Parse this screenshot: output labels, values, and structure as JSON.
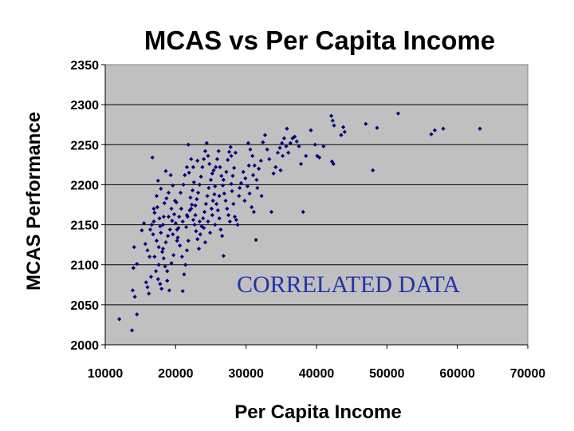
{
  "chart_data": {
    "type": "scatter",
    "title": "MCAS vs Per Capita Income",
    "xlabel": "Per Capita Income",
    "ylabel": "MCAS Performance",
    "xlim": [
      10000,
      70000
    ],
    "ylim": [
      2000,
      2350
    ],
    "xticks": [
      10000,
      20000,
      30000,
      40000,
      50000,
      60000,
      70000
    ],
    "yticks": [
      2000,
      2050,
      2100,
      2150,
      2200,
      2250,
      2300,
      2350
    ],
    "grid": true,
    "plot_background": "#c0c0c0",
    "marker_color": "#000080",
    "annotation": {
      "text": "CORRELATED DATA",
      "color": "#2233aa"
    },
    "points": [
      [
        12000,
        2032
      ],
      [
        13800,
        2018
      ],
      [
        14500,
        2038
      ],
      [
        14200,
        2060
      ],
      [
        13900,
        2068
      ],
      [
        14000,
        2096
      ],
      [
        14500,
        2101
      ],
      [
        14100,
        2122
      ],
      [
        15200,
        2143
      ],
      [
        15500,
        2152
      ],
      [
        15800,
        2078
      ],
      [
        16000,
        2072
      ],
      [
        16200,
        2064
      ],
      [
        16500,
        2085
      ],
      [
        16300,
        2110
      ],
      [
        16000,
        2118
      ],
      [
        15700,
        2126
      ],
      [
        16800,
        2138
      ],
      [
        16600,
        2150
      ],
      [
        16900,
        2154
      ],
      [
        16700,
        2234
      ],
      [
        17000,
        2165
      ],
      [
        17200,
        2092
      ],
      [
        17500,
        2082
      ],
      [
        17800,
        2076
      ],
      [
        18000,
        2070
      ],
      [
        17300,
        2130
      ],
      [
        17600,
        2122
      ],
      [
        17900,
        2140
      ],
      [
        18200,
        2150
      ],
      [
        17400,
        2172
      ],
      [
        17700,
        2158
      ],
      [
        18100,
        2116
      ],
      [
        18300,
        2108
      ],
      [
        18500,
        2098
      ],
      [
        18800,
        2080
      ],
      [
        19100,
        2068
      ],
      [
        19400,
        2102
      ],
      [
        19700,
        2112
      ],
      [
        18600,
        2128
      ],
      [
        18900,
        2136
      ],
      [
        19200,
        2144
      ],
      [
        19500,
        2155
      ],
      [
        19800,
        2163
      ],
      [
        18400,
        2177
      ],
      [
        18700,
        2183
      ],
      [
        19000,
        2190
      ],
      [
        18600,
        2217
      ],
      [
        19300,
        2212
      ],
      [
        19600,
        2199
      ],
      [
        19900,
        2180
      ],
      [
        17500,
        2205
      ],
      [
        17900,
        2195
      ],
      [
        20000,
        2152
      ],
      [
        20200,
        2144
      ],
      [
        20500,
        2160
      ],
      [
        20800,
        2170
      ],
      [
        20300,
        2134
      ],
      [
        20600,
        2124
      ],
      [
        20900,
        2110
      ],
      [
        21200,
        2088
      ],
      [
        21000,
        2067
      ],
      [
        21400,
        2100
      ],
      [
        21600,
        2118
      ],
      [
        21800,
        2130
      ],
      [
        21500,
        2147
      ],
      [
        21700,
        2160
      ],
      [
        22000,
        2168
      ],
      [
        22300,
        2175
      ],
      [
        22100,
        2184
      ],
      [
        22400,
        2193
      ],
      [
        22600,
        2203
      ],
      [
        21300,
        2212
      ],
      [
        21600,
        2222
      ],
      [
        21800,
        2250
      ],
      [
        22200,
        2232
      ],
      [
        22500,
        2156
      ],
      [
        22700,
        2150
      ],
      [
        22900,
        2142
      ],
      [
        23100,
        2132
      ],
      [
        23300,
        2120
      ],
      [
        23500,
        2138
      ],
      [
        23700,
        2148
      ],
      [
        23900,
        2158
      ],
      [
        24100,
        2166
      ],
      [
        24300,
        2176
      ],
      [
        24500,
        2186
      ],
      [
        24700,
        2196
      ],
      [
        22800,
        2174
      ],
      [
        23000,
        2182
      ],
      [
        23200,
        2190
      ],
      [
        23400,
        2200
      ],
      [
        23600,
        2210
      ],
      [
        23800,
        2222
      ],
      [
        24000,
        2232
      ],
      [
        24200,
        2242
      ],
      [
        24400,
        2252
      ],
      [
        24600,
        2236
      ],
      [
        24800,
        2226
      ],
      [
        25000,
        2206
      ],
      [
        25200,
        2214
      ],
      [
        25400,
        2218
      ],
      [
        25600,
        2198
      ],
      [
        25800,
        2176
      ],
      [
        26000,
        2168
      ],
      [
        26200,
        2158
      ],
      [
        26400,
        2144
      ],
      [
        26600,
        2136
      ],
      [
        26800,
        2111
      ],
      [
        25100,
        2170
      ],
      [
        25300,
        2180
      ],
      [
        25500,
        2188
      ],
      [
        25700,
        2222
      ],
      [
        25900,
        2232
      ],
      [
        26100,
        2242
      ],
      [
        26300,
        2222
      ],
      [
        26500,
        2211
      ],
      [
        26700,
        2199
      ],
      [
        26900,
        2189
      ],
      [
        27100,
        2180
      ],
      [
        27300,
        2170
      ],
      [
        27500,
        2162
      ],
      [
        27700,
        2154
      ],
      [
        27900,
        2201
      ],
      [
        28100,
        2211
      ],
      [
        28300,
        2221
      ],
      [
        27400,
        2231
      ],
      [
        27600,
        2241
      ],
      [
        27800,
        2247
      ],
      [
        28000,
        2192
      ],
      [
        28200,
        2176
      ],
      [
        28400,
        2160
      ],
      [
        28600,
        2156
      ],
      [
        28800,
        2150
      ],
      [
        29000,
        2186
      ],
      [
        29300,
        2202
      ],
      [
        29600,
        2216
      ],
      [
        29900,
        2208
      ],
      [
        30200,
        2198
      ],
      [
        30500,
        2189
      ],
      [
        30800,
        2172
      ],
      [
        31100,
        2166
      ],
      [
        31400,
        2131
      ],
      [
        30300,
        2252
      ],
      [
        30600,
        2244
      ],
      [
        30900,
        2236
      ],
      [
        31200,
        2224
      ],
      [
        31500,
        2206
      ],
      [
        31800,
        2220
      ],
      [
        32100,
        2230
      ],
      [
        32400,
        2253
      ],
      [
        32700,
        2262
      ],
      [
        33000,
        2244
      ],
      [
        33300,
        2232
      ],
      [
        33600,
        2166
      ],
      [
        33900,
        2214
      ],
      [
        34200,
        2222
      ],
      [
        34500,
        2240
      ],
      [
        34800,
        2246
      ],
      [
        35100,
        2252
      ],
      [
        35400,
        2258
      ],
      [
        35700,
        2248
      ],
      [
        36000,
        2240
      ],
      [
        36300,
        2252
      ],
      [
        36600,
        2258
      ],
      [
        36900,
        2260
      ],
      [
        37200,
        2254
      ],
      [
        37500,
        2248
      ],
      [
        37800,
        2226
      ],
      [
        38100,
        2166
      ],
      [
        35800,
        2270
      ],
      [
        35200,
        2236
      ],
      [
        34900,
        2218
      ],
      [
        38500,
        2236
      ],
      [
        39200,
        2268
      ],
      [
        39800,
        2250
      ],
      [
        40100,
        2236
      ],
      [
        40400,
        2234
      ],
      [
        41000,
        2248
      ],
      [
        42100,
        2286
      ],
      [
        42300,
        2280
      ],
      [
        42500,
        2274
      ],
      [
        42200,
        2229
      ],
      [
        42400,
        2226
      ],
      [
        43500,
        2262
      ],
      [
        43800,
        2272
      ],
      [
        44000,
        2266
      ],
      [
        47000,
        2276
      ],
      [
        48000,
        2218
      ],
      [
        48600,
        2271
      ],
      [
        51600,
        2289
      ],
      [
        56300,
        2263
      ],
      [
        56800,
        2268
      ],
      [
        58000,
        2270
      ],
      [
        63200,
        2270
      ],
      [
        19000,
        2160
      ],
      [
        19400,
        2170
      ],
      [
        20100,
        2178
      ],
      [
        20700,
        2190
      ],
      [
        21100,
        2200
      ],
      [
        21900,
        2215
      ],
      [
        22500,
        2222
      ],
      [
        23100,
        2230
      ],
      [
        20400,
        2146
      ],
      [
        21000,
        2154
      ],
      [
        21600,
        2162
      ],
      [
        22200,
        2170
      ],
      [
        22800,
        2162
      ],
      [
        23400,
        2154
      ],
      [
        24000,
        2146
      ],
      [
        24600,
        2154
      ],
      [
        25200,
        2162
      ],
      [
        19600,
        2138
      ],
      [
        20200,
        2130
      ],
      [
        18200,
        2120
      ],
      [
        17000,
        2110
      ],
      [
        17600,
        2100
      ],
      [
        18800,
        2092
      ],
      [
        16400,
        2144
      ],
      [
        16900,
        2170
      ],
      [
        17300,
        2186
      ],
      [
        17800,
        2148
      ],
      [
        18300,
        2160
      ],
      [
        24200,
        2128
      ],
      [
        24900,
        2140
      ],
      [
        25600,
        2150
      ],
      [
        26200,
        2186
      ],
      [
        26800,
        2206
      ],
      [
        27200,
        2216
      ],
      [
        27900,
        2236
      ],
      [
        28500,
        2240
      ],
      [
        29100,
        2196
      ],
      [
        29800,
        2180
      ],
      [
        30400,
        2224
      ],
      [
        31000,
        2212
      ],
      [
        31600,
        2196
      ],
      [
        32200,
        2186
      ]
    ]
  }
}
